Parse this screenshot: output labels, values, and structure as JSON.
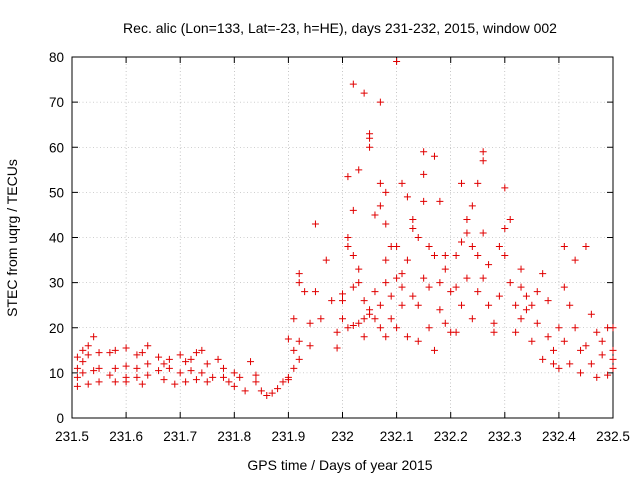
{
  "chart_data": {
    "type": "scatter",
    "title": "Rec. alic (Lon=133, Lat=-23, h=HE), days 231-232, 2015, window 002",
    "xlabel": "GPS time / Days of year 2015",
    "ylabel": "STEC from uqrg / TECUs",
    "xlim": [
      231.5,
      232.5
    ],
    "ylim": [
      0,
      80
    ],
    "xticks": [
      "231.5",
      "231.6",
      "231.7",
      "231.8",
      "231.9",
      "232",
      "232.1",
      "232.2",
      "232.3",
      "232.4",
      "232.5"
    ],
    "yticks": [
      "0",
      "10",
      "20",
      "30",
      "40",
      "50",
      "60",
      "70",
      "80"
    ],
    "grid": true,
    "marker": "+",
    "color": "#e00000",
    "series": [
      {
        "points": [
          [
            231.51,
            13.5
          ],
          [
            231.52,
            15
          ],
          [
            231.53,
            16
          ],
          [
            231.54,
            18
          ],
          [
            231.51,
            11
          ],
          [
            231.52,
            12.5
          ],
          [
            231.53,
            14
          ],
          [
            231.55,
            14.5
          ],
          [
            231.51,
            9
          ],
          [
            231.52,
            10
          ],
          [
            231.54,
            10.5
          ],
          [
            231.55,
            11
          ],
          [
            231.51,
            7
          ],
          [
            231.53,
            7.5
          ],
          [
            231.55,
            8
          ],
          [
            231.57,
            14.5
          ],
          [
            231.58,
            15
          ],
          [
            231.6,
            15.5
          ],
          [
            231.58,
            11
          ],
          [
            231.6,
            11.5
          ],
          [
            231.57,
            9.5
          ],
          [
            231.6,
            9
          ],
          [
            231.58,
            8
          ],
          [
            231.6,
            8
          ],
          [
            231.62,
            14
          ],
          [
            231.63,
            14.5
          ],
          [
            231.64,
            16
          ],
          [
            231.62,
            11
          ],
          [
            231.64,
            12
          ],
          [
            231.62,
            9
          ],
          [
            231.64,
            9.5
          ],
          [
            231.63,
            7.5
          ],
          [
            231.66,
            13.5
          ],
          [
            231.67,
            12
          ],
          [
            231.68,
            13
          ],
          [
            231.66,
            10.5
          ],
          [
            231.68,
            11
          ],
          [
            231.67,
            8.5
          ],
          [
            231.69,
            7.5
          ],
          [
            231.7,
            14
          ],
          [
            231.71,
            12.5
          ],
          [
            231.72,
            13
          ],
          [
            231.7,
            10
          ],
          [
            231.72,
            10.5
          ],
          [
            231.71,
            8
          ],
          [
            231.73,
            8.5
          ],
          [
            231.73,
            14.5
          ],
          [
            231.74,
            15
          ],
          [
            231.75,
            12
          ],
          [
            231.74,
            10
          ],
          [
            231.76,
            9
          ],
          [
            231.75,
            8
          ],
          [
            231.77,
            13
          ],
          [
            231.78,
            11
          ],
          [
            231.78,
            9
          ],
          [
            231.79,
            8
          ],
          [
            231.8,
            10
          ],
          [
            231.81,
            9
          ],
          [
            231.8,
            7
          ],
          [
            231.82,
            6
          ],
          [
            231.83,
            12.5
          ],
          [
            231.84,
            9.5
          ],
          [
            231.84,
            8
          ],
          [
            231.85,
            6
          ],
          [
            231.86,
            5
          ],
          [
            231.87,
            5.5
          ],
          [
            231.88,
            6.5
          ],
          [
            231.89,
            8
          ],
          [
            231.9,
            8.5
          ],
          [
            231.9,
            9
          ],
          [
            231.91,
            11
          ],
          [
            231.92,
            13
          ],
          [
            231.91,
            15
          ],
          [
            231.92,
            17
          ],
          [
            231.9,
            17.5
          ],
          [
            231.91,
            22
          ],
          [
            231.92,
            30
          ],
          [
            231.92,
            32
          ],
          [
            231.93,
            28
          ],
          [
            231.94,
            16
          ],
          [
            231.94,
            21
          ],
          [
            231.95,
            28
          ],
          [
            231.96,
            22
          ],
          [
            231.97,
            35
          ],
          [
            231.95,
            43
          ],
          [
            231.98,
            26
          ],
          [
            231.99,
            19
          ],
          [
            231.99,
            15.5
          ],
          [
            232.0,
            22
          ],
          [
            232.0,
            26
          ],
          [
            232.0,
            27.5
          ],
          [
            232.01,
            20
          ],
          [
            232.01,
            38
          ],
          [
            232.01,
            40
          ],
          [
            232.01,
            53.5
          ],
          [
            232.02,
            46
          ],
          [
            232.02,
            36
          ],
          [
            232.02,
            29
          ],
          [
            232.02,
            20.5
          ],
          [
            232.02,
            74
          ],
          [
            232.03,
            21
          ],
          [
            232.03,
            30
          ],
          [
            232.03,
            33
          ],
          [
            232.03,
            55
          ],
          [
            232.04,
            72
          ],
          [
            232.04,
            26
          ],
          [
            232.04,
            22
          ],
          [
            232.04,
            18
          ],
          [
            232.05,
            23
          ],
          [
            232.05,
            24
          ],
          [
            232.05,
            60
          ],
          [
            232.05,
            62
          ],
          [
            232.05,
            63
          ],
          [
            232.06,
            45
          ],
          [
            232.06,
            28
          ],
          [
            232.06,
            22
          ],
          [
            232.07,
            25
          ],
          [
            232.07,
            20
          ],
          [
            232.07,
            47
          ],
          [
            232.07,
            52
          ],
          [
            232.07,
            70
          ],
          [
            232.08,
            43
          ],
          [
            232.08,
            35
          ],
          [
            232.08,
            50
          ],
          [
            232.08,
            30
          ],
          [
            232.08,
            18
          ],
          [
            232.09,
            38
          ],
          [
            232.09,
            27
          ],
          [
            232.09,
            22
          ],
          [
            232.1,
            79
          ],
          [
            232.1,
            38
          ],
          [
            232.1,
            31
          ],
          [
            232.1,
            20
          ],
          [
            232.11,
            52
          ],
          [
            232.11,
            25
          ],
          [
            232.11,
            29
          ],
          [
            232.11,
            32
          ],
          [
            232.12,
            35
          ],
          [
            232.12,
            18
          ],
          [
            232.12,
            49
          ],
          [
            232.13,
            27
          ],
          [
            232.13,
            44
          ],
          [
            232.13,
            42
          ],
          [
            232.14,
            40
          ],
          [
            232.14,
            25
          ],
          [
            232.14,
            17
          ],
          [
            232.15,
            59
          ],
          [
            232.15,
            54
          ],
          [
            232.15,
            48
          ],
          [
            232.15,
            31
          ],
          [
            232.16,
            29
          ],
          [
            232.16,
            20
          ],
          [
            232.16,
            38
          ],
          [
            232.17,
            58
          ],
          [
            232.17,
            36
          ],
          [
            232.17,
            15
          ],
          [
            232.18,
            24
          ],
          [
            232.18,
            48
          ],
          [
            232.18,
            30
          ],
          [
            232.19,
            36
          ],
          [
            232.19,
            21
          ],
          [
            232.19,
            33
          ],
          [
            232.2,
            28
          ],
          [
            232.2,
            19
          ],
          [
            232.21,
            29
          ],
          [
            232.21,
            36
          ],
          [
            232.21,
            19
          ],
          [
            232.22,
            52
          ],
          [
            232.22,
            39
          ],
          [
            232.22,
            25
          ],
          [
            232.23,
            44
          ],
          [
            232.23,
            41
          ],
          [
            232.23,
            31
          ],
          [
            232.24,
            38
          ],
          [
            232.24,
            47
          ],
          [
            232.24,
            22
          ],
          [
            232.25,
            52
          ],
          [
            232.25,
            28
          ],
          [
            232.25,
            36
          ],
          [
            232.26,
            59
          ],
          [
            232.26,
            57
          ],
          [
            232.26,
            41
          ],
          [
            232.26,
            31
          ],
          [
            232.27,
            34
          ],
          [
            232.27,
            25
          ],
          [
            232.28,
            21
          ],
          [
            232.28,
            19
          ],
          [
            232.29,
            38
          ],
          [
            232.29,
            27
          ],
          [
            232.3,
            51
          ],
          [
            232.3,
            42
          ],
          [
            232.3,
            36
          ],
          [
            232.31,
            44
          ],
          [
            232.31,
            30
          ],
          [
            232.32,
            25
          ],
          [
            232.32,
            19
          ],
          [
            232.33,
            33
          ],
          [
            232.33,
            29
          ],
          [
            232.33,
            22
          ],
          [
            232.34,
            27
          ],
          [
            232.34,
            24
          ],
          [
            232.35,
            25
          ],
          [
            232.35,
            17
          ],
          [
            232.36,
            28
          ],
          [
            232.36,
            21
          ],
          [
            232.37,
            32
          ],
          [
            232.37,
            13
          ],
          [
            232.38,
            26
          ],
          [
            232.38,
            18
          ],
          [
            232.39,
            12
          ],
          [
            232.39,
            15
          ],
          [
            232.4,
            20
          ],
          [
            232.4,
            11
          ],
          [
            232.41,
            38
          ],
          [
            232.41,
            29
          ],
          [
            232.41,
            17
          ],
          [
            232.42,
            12
          ],
          [
            232.42,
            25
          ],
          [
            232.43,
            35
          ],
          [
            232.43,
            20
          ],
          [
            232.44,
            10
          ],
          [
            232.44,
            15
          ],
          [
            232.45,
            38
          ],
          [
            232.45,
            16
          ],
          [
            232.46,
            23
          ],
          [
            232.46,
            12
          ],
          [
            232.47,
            19
          ],
          [
            232.47,
            9
          ],
          [
            232.48,
            17
          ],
          [
            232.48,
            14
          ],
          [
            232.49,
            20
          ],
          [
            232.49,
            9.5
          ],
          [
            232.5,
            20
          ],
          [
            232.5,
            15
          ],
          [
            232.5,
            13
          ],
          [
            232.5,
            11
          ]
        ]
      }
    ]
  }
}
